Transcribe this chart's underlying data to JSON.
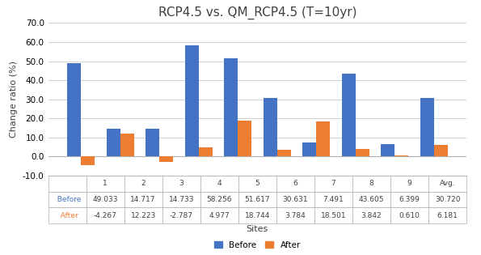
{
  "title": "RCP4.5 vs. QM_RCP4.5 (T=10yr)",
  "xlabel": "Sites",
  "ylabel": "Change ratio (%)",
  "categories": [
    "1",
    "2",
    "3",
    "4",
    "5",
    "6",
    "7",
    "8",
    "9",
    "Avg."
  ],
  "before": [
    49.033,
    14.717,
    14.733,
    58.256,
    51.617,
    30.631,
    7.491,
    43.605,
    6.399,
    30.72
  ],
  "after": [
    -4.267,
    12.223,
    -2.787,
    4.977,
    18.744,
    3.784,
    18.501,
    3.842,
    0.61,
    6.181
  ],
  "before_color": "#4472C4",
  "after_color": "#ED7D31",
  "ylim": [
    -10.0,
    70.0
  ],
  "yticks": [
    -10.0,
    0.0,
    10.0,
    20.0,
    30.0,
    40.0,
    50.0,
    60.0,
    70.0
  ],
  "bar_width": 0.35,
  "title_fontsize": 11,
  "axis_label_fontsize": 8,
  "tick_fontsize": 7.5,
  "legend_fontsize": 7.5,
  "table_fontsize": 6.5,
  "background_color": "#ffffff",
  "grid_color": "#d0d0d0"
}
